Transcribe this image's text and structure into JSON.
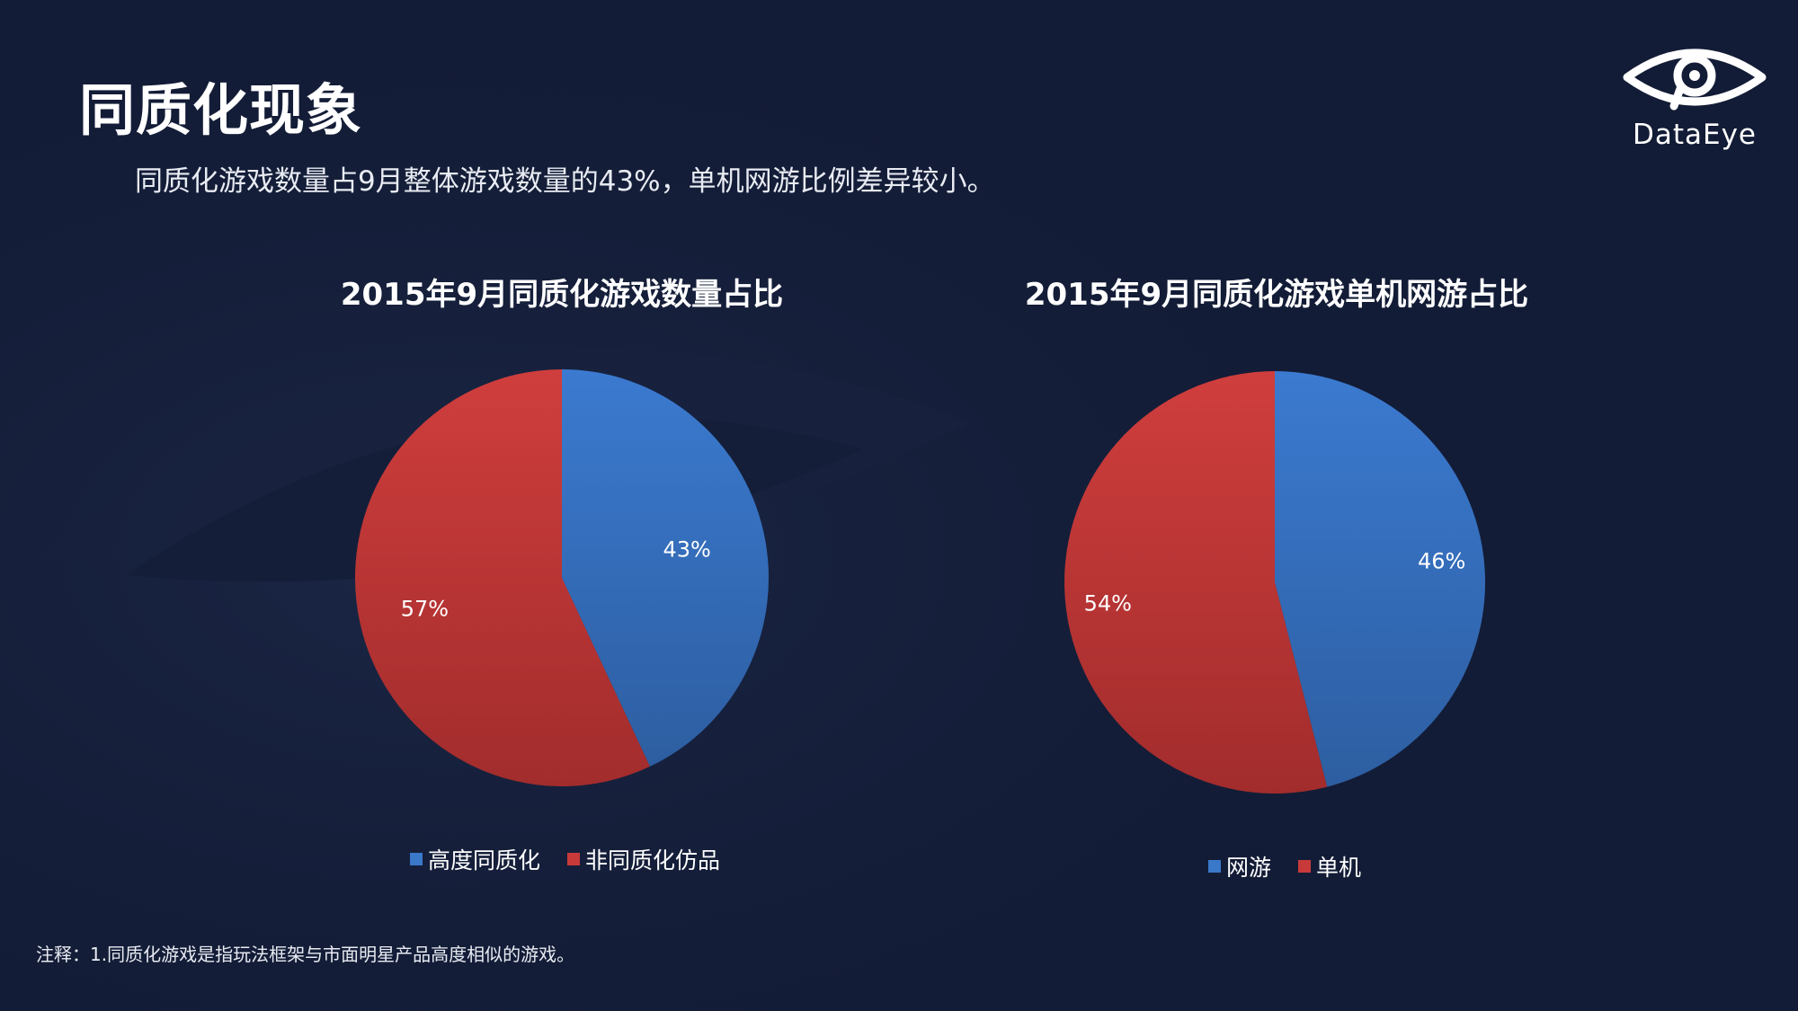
{
  "page": {
    "title": "同质化现象",
    "subtitle": "同质化游戏数量占9月整体游戏数量的43%，单机网游比例差异较小。",
    "footnote": "注释：1.同质化游戏是指玩法框架与市面明星产品高度相似的游戏。"
  },
  "logo": {
    "text": "DataEye",
    "icon": "eye-logo-icon"
  },
  "colors": {
    "background": "#131c36",
    "blue": "#3a78c9",
    "blue_dark": "#2f62a6",
    "red": "#c83a3a",
    "red_dark": "#a32d2d"
  },
  "chart_data": [
    {
      "type": "pie",
      "title": "2015年9月同质化游戏数量占比",
      "categories": [
        "高度同质化",
        "非同质化仿品"
      ],
      "values": [
        43,
        57
      ],
      "data_labels": [
        "43%",
        "57%"
      ],
      "colors": [
        "#3a78c9",
        "#c83a3a"
      ],
      "legend_position": "bottom"
    },
    {
      "type": "pie",
      "title": "2015年9月同质化游戏单机网游占比",
      "categories": [
        "网游",
        "单机"
      ],
      "values": [
        46,
        54
      ],
      "data_labels": [
        "46%",
        "54%"
      ],
      "colors": [
        "#3a78c9",
        "#c83a3a"
      ],
      "legend_position": "bottom"
    }
  ]
}
